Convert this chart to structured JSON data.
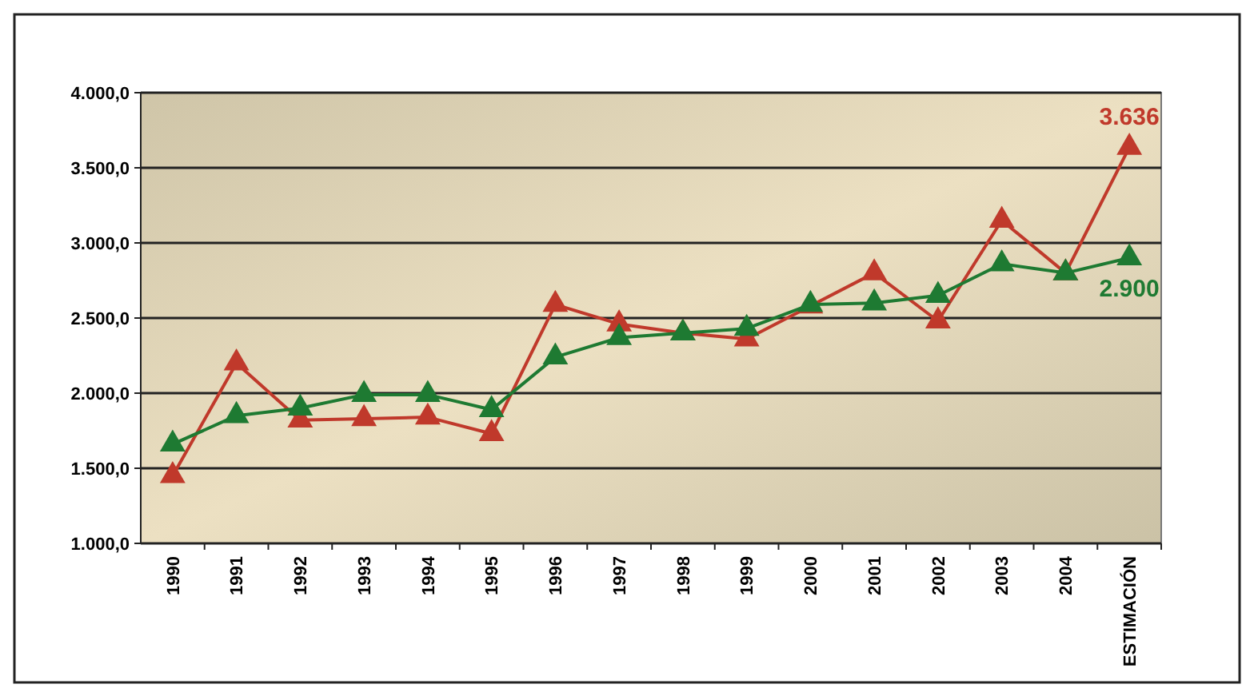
{
  "chart_data": {
    "type": "line",
    "categories": [
      "1990",
      "1991",
      "1992",
      "1993",
      "1994",
      "1995",
      "1996",
      "1997",
      "1998",
      "1999",
      "2000",
      "2001",
      "2002",
      "2003",
      "2004",
      "ESTIMACIÓN"
    ],
    "series": [
      {
        "color": "#c0392b",
        "values": [
          1450,
          2200,
          1820,
          1830,
          1840,
          1730,
          2590,
          2460,
          2400,
          2360,
          2580,
          2800,
          2480,
          3150,
          2800,
          3636
        ],
        "value_labels": [
          null,
          null,
          null,
          null,
          null,
          null,
          null,
          null,
          null,
          null,
          null,
          null,
          null,
          null,
          null,
          "3.636"
        ]
      },
      {
        "color": "#1e7a32",
        "values": [
          1660,
          1850,
          1900,
          1990,
          1990,
          1890,
          2240,
          2370,
          2400,
          2430,
          2590,
          2600,
          2650,
          2860,
          2800,
          2900
        ],
        "value_labels": [
          null,
          null,
          null,
          null,
          null,
          null,
          null,
          null,
          null,
          null,
          null,
          null,
          null,
          null,
          null,
          "2.900"
        ]
      }
    ],
    "ylim": [
      1000,
      4000
    ],
    "yticks": [
      {
        "value": 1000,
        "label": "1.000,0"
      },
      {
        "value": 1500,
        "label": "1.500,0"
      },
      {
        "value": 2000,
        "label": "2.000,0"
      },
      {
        "value": 2500,
        "label": "2.500,0"
      },
      {
        "value": 3000,
        "label": "3.000,0"
      },
      {
        "value": 3500,
        "label": "3.500,0"
      },
      {
        "value": 4000,
        "label": "4.000,0"
      }
    ],
    "grid": "y",
    "marker": "triangle",
    "line_style": "solid"
  }
}
